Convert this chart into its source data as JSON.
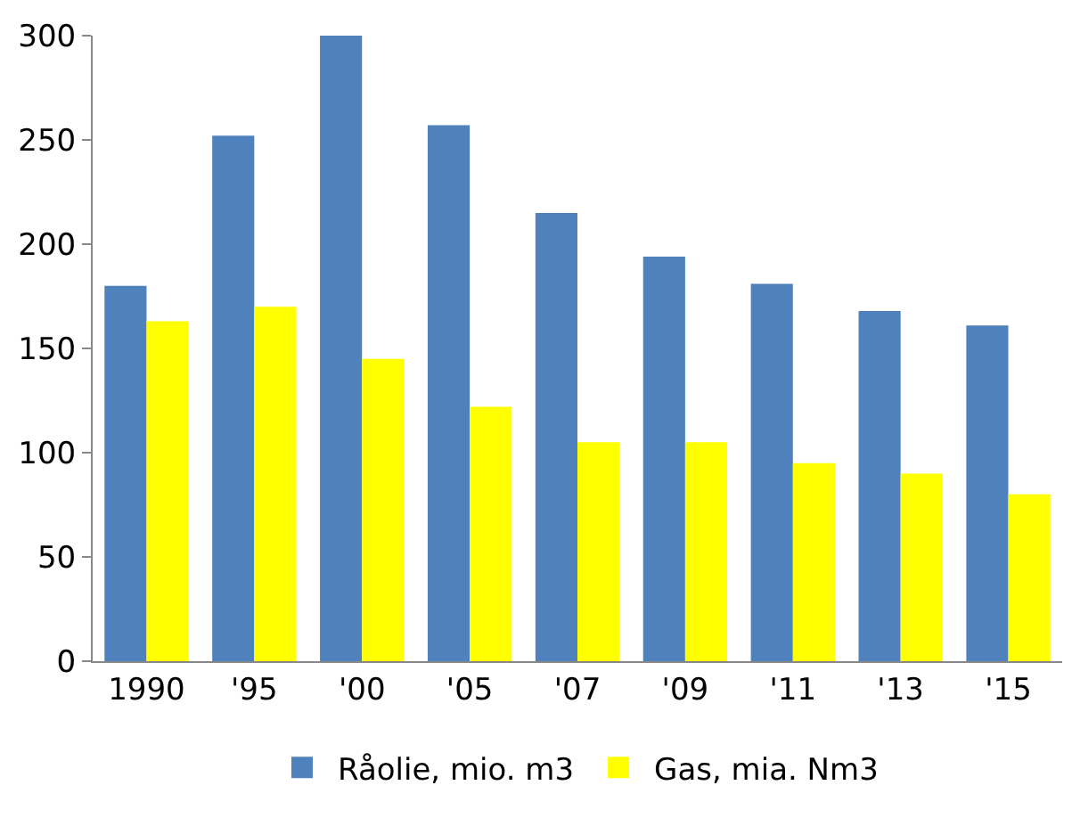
{
  "chart_data": {
    "type": "bar",
    "categories": [
      "1990",
      "'95",
      "'00",
      "'05",
      "'07",
      "'09",
      "'11",
      "'13",
      "'15"
    ],
    "series": [
      {
        "name": "Råolie, mio. m3",
        "color": "#4f81bd",
        "values": [
          180,
          252,
          300,
          257,
          215,
          194,
          181,
          168,
          161
        ]
      },
      {
        "name": "Gas, mia. Nm3",
        "color": "#ffff00",
        "values": [
          163,
          170,
          145,
          122,
          105,
          105,
          95,
          90,
          80
        ]
      }
    ],
    "ylim": [
      0,
      300
    ],
    "yticks": [
      0,
      50,
      100,
      150,
      200,
      250,
      300
    ],
    "grid": false,
    "legend": "bottom"
  }
}
